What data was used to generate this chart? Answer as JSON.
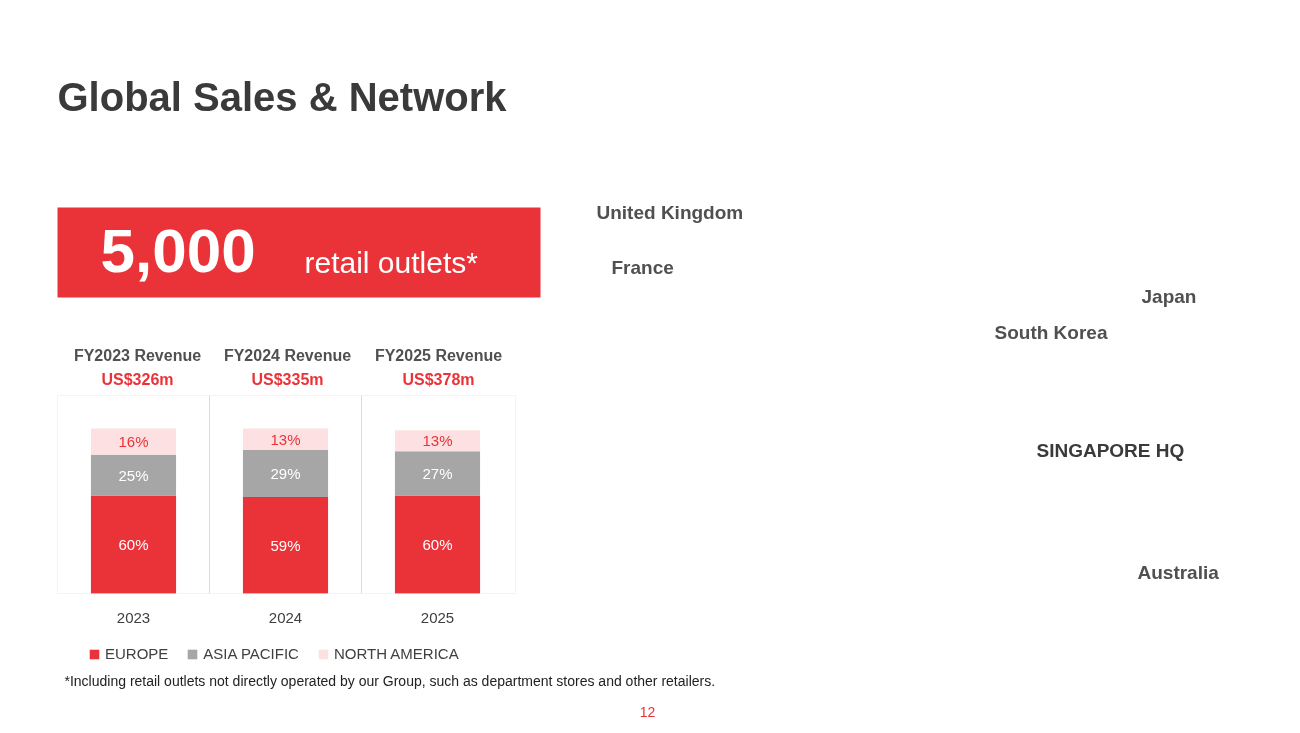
{
  "chart_data": {
    "type": "bar",
    "stacked": true,
    "title": "Global Sales & Network",
    "categories": [
      "2023",
      "2024",
      "2025"
    ],
    "series": [
      {
        "name": "EUROPE",
        "color": "#ea3339",
        "values": [
          60,
          59,
          60
        ],
        "value_labels": [
          "60%",
          "59%",
          "60%"
        ]
      },
      {
        "name": "ASIA PACIFIC",
        "color": "#a6a6a6",
        "values": [
          25,
          29,
          27
        ],
        "value_labels": [
          "25%",
          "29%",
          "27%"
        ]
      },
      {
        "name": "NORTH AMERICA",
        "color": "#fde0e1",
        "values": [
          16,
          13,
          13
        ],
        "value_labels": [
          "16%",
          "13%",
          "13%"
        ]
      }
    ],
    "legend": "bottom",
    "grid": "x",
    "annotations": [
      "5,000",
      "retail outlets*",
      "FY2023 Revenue",
      "US$326m",
      "FY2024 Revenue",
      "US$335m",
      "FY2025 Revenue",
      "US$378m",
      "United  Kingdom",
      "France",
      "Japan",
      "South Korea",
      "SINGAPORE HQ",
      "Australia",
      "*Including retail outlets not directly operated by our Group, such as department stores and other retailers.",
      "12"
    ]
  }
}
